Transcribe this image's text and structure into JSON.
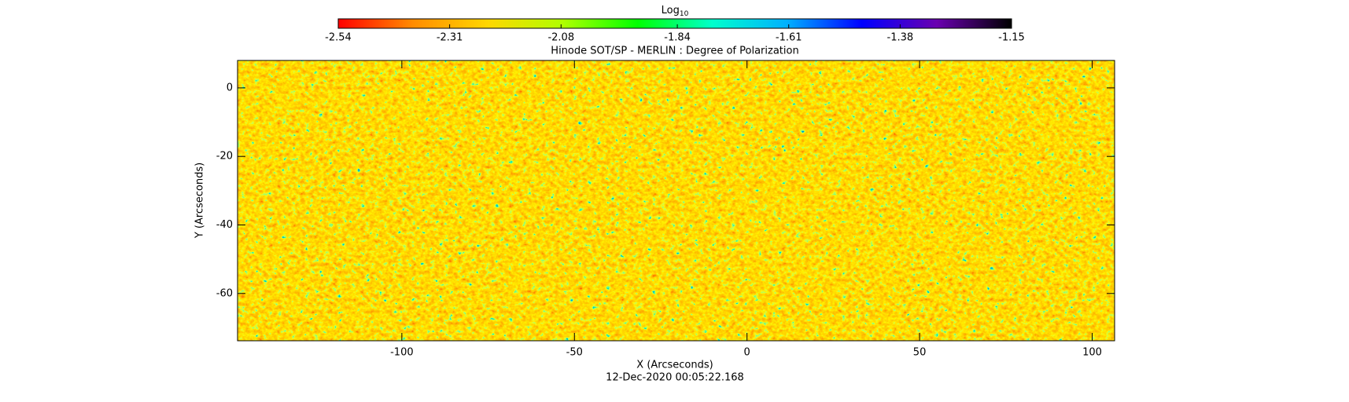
{
  "chart_data": {
    "type": "image",
    "title": "Hinode SOT/SP - MERLIN : Degree of Polarization",
    "x_label": "X (Arcseconds)",
    "y_label": "Y (Arcseconds)",
    "timestamp": "12-Dec-2020 00:05:22.168",
    "xlim": [
      -147.6,
      106.5
    ],
    "ylim": [
      -73.8,
      8
    ],
    "xticks": [
      -100,
      -50,
      0,
      50,
      100
    ],
    "yticks": [
      -60,
      -40,
      -20,
      0
    ],
    "colorbar": {
      "label": "Log",
      "label_subscript": "10",
      "lim": [
        -2.54,
        -1.15
      ],
      "ticks": [
        -2.54,
        -2.31,
        -2.08,
        -1.84,
        -1.61,
        -1.38,
        -1.15
      ],
      "colormap": [
        "#ff0000",
        "#ff8c00",
        "#ffd700",
        "#b0ff00",
        "#00ff00",
        "#00ffcc",
        "#00b0ff",
        "#0000ff",
        "#6a00b0",
        "#000000"
      ]
    }
  }
}
